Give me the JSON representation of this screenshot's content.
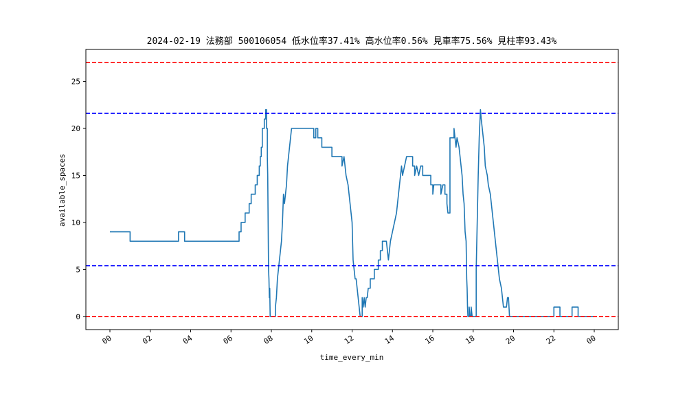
{
  "chart_data": {
    "type": "line",
    "title": "2024-02-19 法務部 500106054 低水位率37.41% 高水位率0.56% 見車率75.56% 見柱率93.43%",
    "xlabel": "time_every_min",
    "ylabel": "available_spaces",
    "x_ticks": [
      "00",
      "02",
      "04",
      "06",
      "08",
      "10",
      "12",
      "14",
      "16",
      "18",
      "20",
      "22",
      "00"
    ],
    "x_range_hours": [
      0,
      24
    ],
    "y_ticks": [
      "0",
      "5",
      "10",
      "15",
      "20",
      "25"
    ],
    "ylim": [
      -1.4,
      28.4
    ],
    "hlines": [
      {
        "y": 27,
        "color": "#ff0000",
        "style": "dashed"
      },
      {
        "y": 21.6,
        "color": "#0000ff",
        "style": "dashed"
      },
      {
        "y": 5.4,
        "color": "#0000ff",
        "style": "dashed"
      },
      {
        "y": 0,
        "color": "#ff0000",
        "style": "dashed"
      }
    ],
    "series": [
      {
        "color": "#1f77b4",
        "points": [
          [
            0.0,
            9
          ],
          [
            1.0,
            9
          ],
          [
            1.0,
            8
          ],
          [
            3.4,
            8
          ],
          [
            3.4,
            9
          ],
          [
            3.7,
            9
          ],
          [
            3.7,
            8
          ],
          [
            6.4,
            8
          ],
          [
            6.4,
            9
          ],
          [
            6.5,
            9
          ],
          [
            6.5,
            10
          ],
          [
            6.7,
            10
          ],
          [
            6.7,
            11
          ],
          [
            6.9,
            11
          ],
          [
            6.9,
            12
          ],
          [
            7.0,
            12
          ],
          [
            7.0,
            13
          ],
          [
            7.2,
            13
          ],
          [
            7.2,
            14
          ],
          [
            7.3,
            14
          ],
          [
            7.3,
            15
          ],
          [
            7.4,
            15
          ],
          [
            7.4,
            16
          ],
          [
            7.45,
            16
          ],
          [
            7.45,
            17
          ],
          [
            7.5,
            17
          ],
          [
            7.5,
            18
          ],
          [
            7.55,
            18
          ],
          [
            7.55,
            20
          ],
          [
            7.65,
            20
          ],
          [
            7.65,
            21
          ],
          [
            7.72,
            21
          ],
          [
            7.72,
            22
          ],
          [
            7.76,
            22
          ],
          [
            7.76,
            20
          ],
          [
            7.8,
            20
          ],
          [
            7.8,
            17
          ],
          [
            7.82,
            15
          ],
          [
            7.84,
            10
          ],
          [
            7.86,
            5
          ],
          [
            7.88,
            4
          ],
          [
            7.9,
            2
          ],
          [
            7.92,
            3
          ],
          [
            7.94,
            0
          ],
          [
            8.2,
            0
          ],
          [
            8.2,
            1
          ],
          [
            8.25,
            2
          ],
          [
            8.3,
            4
          ],
          [
            8.35,
            5
          ],
          [
            8.4,
            6
          ],
          [
            8.45,
            7
          ],
          [
            8.5,
            8
          ],
          [
            8.55,
            10
          ],
          [
            8.6,
            13
          ],
          [
            8.65,
            12
          ],
          [
            8.7,
            13
          ],
          [
            8.75,
            14
          ],
          [
            8.8,
            16
          ],
          [
            8.85,
            17
          ],
          [
            8.9,
            18
          ],
          [
            8.95,
            19
          ],
          [
            9.0,
            20
          ],
          [
            10.1,
            20
          ],
          [
            10.1,
            19
          ],
          [
            10.2,
            19
          ],
          [
            10.2,
            20
          ],
          [
            10.3,
            20
          ],
          [
            10.3,
            19
          ],
          [
            10.5,
            19
          ],
          [
            10.5,
            18
          ],
          [
            11.0,
            18
          ],
          [
            11.0,
            17
          ],
          [
            11.5,
            17
          ],
          [
            11.5,
            16
          ],
          [
            11.6,
            17
          ],
          [
            11.7,
            15
          ],
          [
            11.8,
            14
          ],
          [
            11.85,
            13
          ],
          [
            11.9,
            12
          ],
          [
            11.95,
            11
          ],
          [
            12.0,
            10
          ],
          [
            12.05,
            6
          ],
          [
            12.1,
            5
          ],
          [
            12.15,
            4
          ],
          [
            12.2,
            4
          ],
          [
            12.25,
            3
          ],
          [
            12.3,
            2
          ],
          [
            12.35,
            1
          ],
          [
            12.4,
            0
          ],
          [
            12.5,
            0
          ],
          [
            12.5,
            2
          ],
          [
            12.55,
            1
          ],
          [
            12.6,
            2
          ],
          [
            12.65,
            1
          ],
          [
            12.7,
            2
          ],
          [
            12.75,
            2
          ],
          [
            12.8,
            3
          ],
          [
            12.9,
            3
          ],
          [
            12.9,
            4
          ],
          [
            13.1,
            4
          ],
          [
            13.1,
            5
          ],
          [
            13.3,
            5
          ],
          [
            13.3,
            6
          ],
          [
            13.4,
            6
          ],
          [
            13.4,
            7
          ],
          [
            13.5,
            7
          ],
          [
            13.5,
            8
          ],
          [
            13.7,
            8
          ],
          [
            13.75,
            7
          ],
          [
            13.8,
            6
          ],
          [
            13.85,
            7
          ],
          [
            13.9,
            8
          ],
          [
            14.0,
            9
          ],
          [
            14.1,
            10
          ],
          [
            14.2,
            11
          ],
          [
            14.3,
            13
          ],
          [
            14.4,
            15
          ],
          [
            14.45,
            16
          ],
          [
            14.5,
            15
          ],
          [
            14.6,
            16
          ],
          [
            14.7,
            17
          ],
          [
            15.0,
            17
          ],
          [
            15.0,
            16
          ],
          [
            15.1,
            16
          ],
          [
            15.1,
            15
          ],
          [
            15.2,
            16
          ],
          [
            15.3,
            15
          ],
          [
            15.4,
            16
          ],
          [
            15.5,
            16
          ],
          [
            15.5,
            15
          ],
          [
            15.9,
            15
          ],
          [
            15.9,
            14
          ],
          [
            16.0,
            14
          ],
          [
            16.0,
            13
          ],
          [
            16.05,
            14
          ],
          [
            16.1,
            14
          ],
          [
            16.4,
            14
          ],
          [
            16.4,
            13
          ],
          [
            16.5,
            14
          ],
          [
            16.6,
            14
          ],
          [
            16.6,
            13
          ],
          [
            16.7,
            13
          ],
          [
            16.7,
            12
          ],
          [
            16.75,
            11
          ],
          [
            16.85,
            11
          ],
          [
            16.85,
            19
          ],
          [
            17.05,
            19
          ],
          [
            17.05,
            20
          ],
          [
            17.1,
            19
          ],
          [
            17.15,
            18
          ],
          [
            17.2,
            19
          ],
          [
            17.3,
            18
          ],
          [
            17.35,
            17
          ],
          [
            17.45,
            15
          ],
          [
            17.5,
            13
          ],
          [
            17.55,
            12
          ],
          [
            17.6,
            9
          ],
          [
            17.65,
            8
          ],
          [
            17.68,
            4
          ],
          [
            17.7,
            3
          ],
          [
            17.72,
            1
          ],
          [
            17.74,
            0
          ],
          [
            17.8,
            0
          ],
          [
            17.8,
            1
          ],
          [
            17.85,
            0
          ],
          [
            17.9,
            0
          ],
          [
            17.9,
            1
          ],
          [
            17.95,
            0
          ],
          [
            18.15,
            0
          ],
          [
            18.15,
            5
          ],
          [
            18.2,
            10
          ],
          [
            18.25,
            15
          ],
          [
            18.3,
            19
          ],
          [
            18.32,
            20
          ],
          [
            18.34,
            21
          ],
          [
            18.36,
            22
          ],
          [
            18.4,
            21
          ],
          [
            18.45,
            20
          ],
          [
            18.5,
            19
          ],
          [
            18.55,
            18
          ],
          [
            18.6,
            16
          ],
          [
            18.7,
            15
          ],
          [
            18.75,
            14
          ],
          [
            18.85,
            13
          ],
          [
            18.9,
            12
          ],
          [
            18.95,
            11
          ],
          [
            19.0,
            10
          ],
          [
            19.05,
            9
          ],
          [
            19.1,
            8
          ],
          [
            19.15,
            7
          ],
          [
            19.2,
            6
          ],
          [
            19.25,
            5
          ],
          [
            19.3,
            4
          ],
          [
            19.4,
            3
          ],
          [
            19.45,
            2
          ],
          [
            19.5,
            1
          ],
          [
            19.65,
            1
          ],
          [
            19.7,
            2
          ],
          [
            19.75,
            2
          ],
          [
            19.8,
            0
          ],
          [
            22.0,
            0
          ],
          [
            22.0,
            1
          ],
          [
            22.3,
            1
          ],
          [
            22.3,
            0
          ],
          [
            22.9,
            0
          ],
          [
            22.9,
            1
          ],
          [
            23.2,
            1
          ],
          [
            23.2,
            0
          ],
          [
            24.0,
            0
          ]
        ]
      }
    ]
  }
}
